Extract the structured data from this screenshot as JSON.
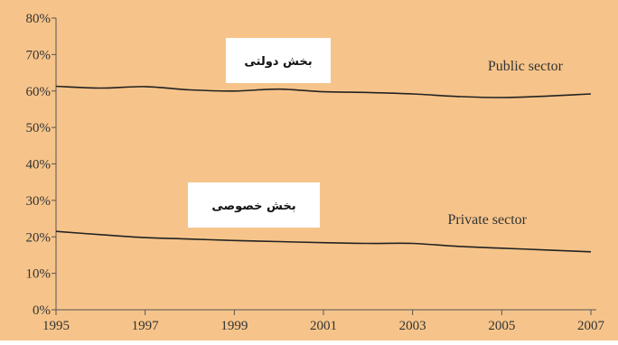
{
  "chart_data": {
    "type": "line",
    "background": "#f6c48a",
    "line_color": "#222222",
    "x": [
      1995,
      1996,
      1997,
      1998,
      1999,
      2000,
      2001,
      2002,
      2003,
      2004,
      2005,
      2006,
      2007
    ],
    "x_tick_labels": [
      "1995",
      "1997",
      "1999",
      "2001",
      "2003",
      "2005",
      "2007"
    ],
    "y_tick_labels": [
      "0%",
      "10%",
      "20%",
      "30%",
      "40%",
      "50%",
      "60%",
      "70%",
      "80%"
    ],
    "ylim": [
      0,
      80
    ],
    "xlim": [
      1995,
      2007
    ],
    "grid": false,
    "series": [
      {
        "name": "Public sector",
        "label_fa": "بخش دولتی",
        "values": [
          61.3,
          60.8,
          61.2,
          60.3,
          60.0,
          60.5,
          59.8,
          59.6,
          59.2,
          58.5,
          58.2,
          58.6,
          59.2
        ]
      },
      {
        "name": "Private sector",
        "label_fa": "بخش خصوصی",
        "values": [
          21.5,
          20.6,
          19.8,
          19.4,
          19.0,
          18.7,
          18.4,
          18.2,
          18.2,
          17.4,
          16.9,
          16.4,
          15.9
        ]
      }
    ]
  }
}
